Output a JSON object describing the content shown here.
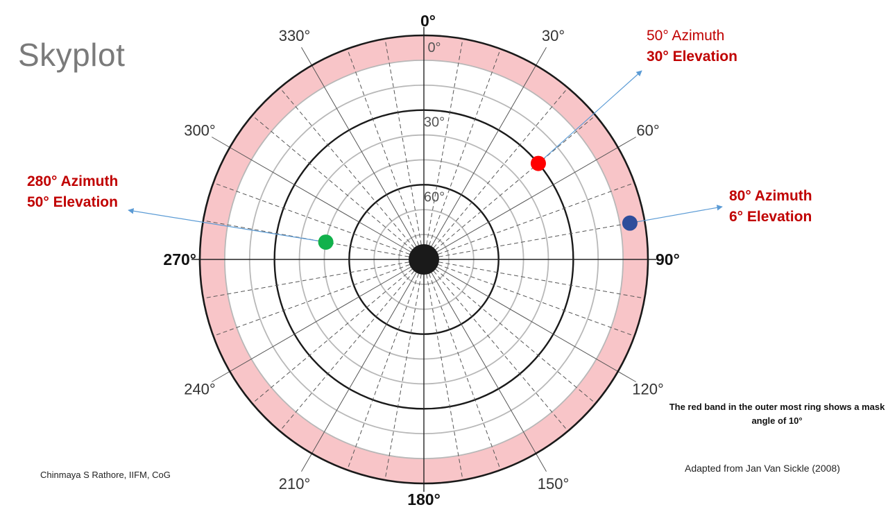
{
  "title": "Skyplot",
  "compass": {
    "north": "0°",
    "east": "90°",
    "south": "180°",
    "west": "270°"
  },
  "azimuth_labels": [
    "30°",
    "60°",
    "120°",
    "150°",
    "210°",
    "240°",
    "300°",
    "330°"
  ],
  "elevation_labels": [
    "0°",
    "30°",
    "60°"
  ],
  "satellites": [
    {
      "id": "sat-a",
      "azimuth_deg": 50,
      "elevation_deg": 30,
      "color": "#ff0000",
      "line1": "50° Azimuth",
      "line2": "30° Elevation"
    },
    {
      "id": "sat-b",
      "azimuth_deg": 80,
      "elevation_deg": 6,
      "color": "#2e4d9b",
      "line1": "80° Azimuth",
      "line2": "6° Elevation"
    },
    {
      "id": "sat-c",
      "azimuth_deg": 280,
      "elevation_deg": 50,
      "color": "#11b14b",
      "line1": "280° Azimuth",
      "line2": "50° Elevation"
    }
  ],
  "mask_angle_deg": 10,
  "mask_band_color": "#f8c5c8",
  "note": "The red band in the outer most ring shows a mask angle of 10°",
  "credit_author": "Chinmaya S Rathore, IIFM, CoG",
  "credit_source": "Adapted from  Jan Van Sickle (2008)"
}
